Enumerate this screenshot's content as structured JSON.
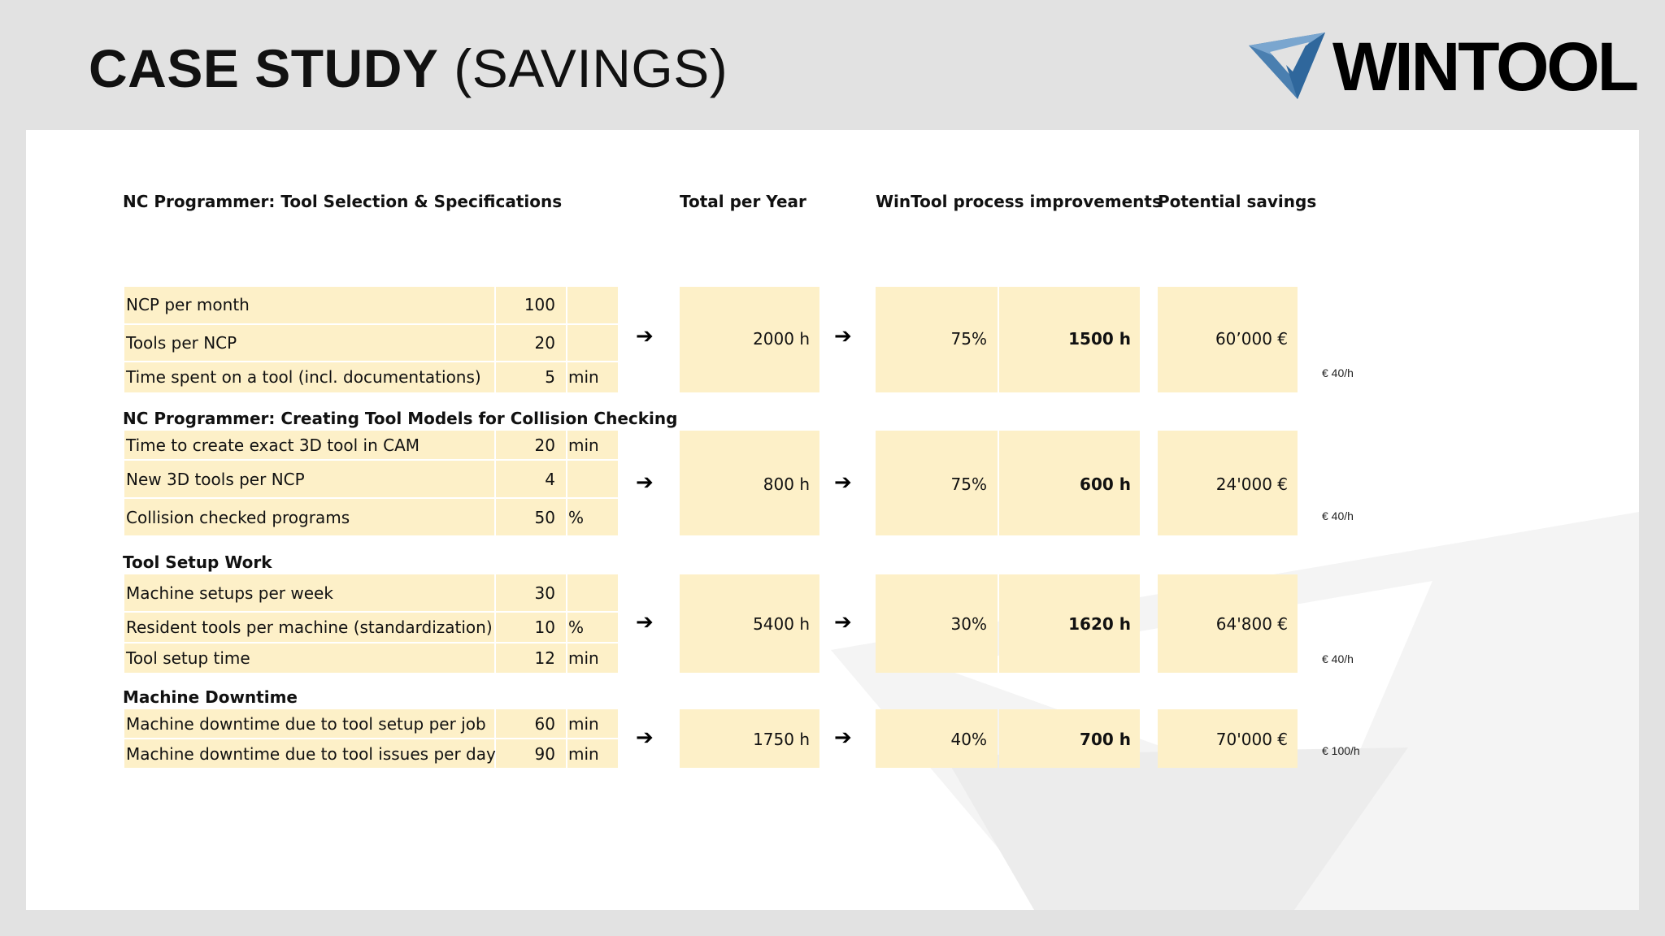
{
  "page": {
    "title_bold": "CASE STUDY",
    "title_rest": "(SAVINGS)",
    "logo_text": "WINTOOL"
  },
  "headers": {
    "total_per_year": "Total per Year",
    "improvements": "WinTool process improvements",
    "savings": "Potential savings"
  },
  "sections": [
    {
      "title": "NC Programmer: Tool Selection & Specifications",
      "rows": [
        {
          "label": "NCP per month",
          "value": "100",
          "unit": ""
        },
        {
          "label": "Tools per NCP",
          "value": "20",
          "unit": ""
        },
        {
          "label": "Time spent on a tool (incl. documentations)",
          "value": "5",
          "unit": "min"
        }
      ],
      "total": "2000 h",
      "improvement_pct": "75%",
      "improvement_hours": "1500  h",
      "savings": "60’000 €",
      "rate": "€ 40/h"
    },
    {
      "title": "NC Programmer: Creating Tool Models for Collision Checking",
      "rows": [
        {
          "label": "Time to create exact 3D tool in CAM",
          "value": "20",
          "unit": "min"
        },
        {
          "label": "New 3D tools per NCP",
          "value": "4",
          "unit": ""
        },
        {
          "label": "Collision checked programs",
          "value": "50",
          "unit": "%"
        }
      ],
      "total": "800 h",
      "improvement_pct": "75%",
      "improvement_hours": "600  h",
      "savings": "24'000 €",
      "rate": "€ 40/h"
    },
    {
      "title": "Tool Setup Work",
      "rows": [
        {
          "label": "Machine setups per week",
          "value": "30",
          "unit": ""
        },
        {
          "label": "Resident tools per machine (standardization)",
          "value": "10",
          "unit": "%"
        },
        {
          "label": "Tool setup time",
          "value": "12",
          "unit": "min"
        }
      ],
      "total": "5400 h",
      "improvement_pct": "30%",
      "improvement_hours": "1620 h",
      "savings": "64'800 €",
      "rate": "€ 40/h"
    },
    {
      "title": "Machine Downtime",
      "rows": [
        {
          "label": "Machine downtime due to tool setup per job",
          "value": "60",
          "unit": "min"
        },
        {
          "label": "Machine downtime due to tool issues per day",
          "value": "90",
          "unit": "min"
        }
      ],
      "total": "1750 h",
      "improvement_pct": "40%",
      "improvement_hours": "700  h",
      "savings": "70'000 €",
      "rate": "€ 100/h"
    }
  ],
  "colors": {
    "cell": "#fdf0c8",
    "logo_blue": "#5b8fc0",
    "logo_dark": "#2d5f8e"
  }
}
